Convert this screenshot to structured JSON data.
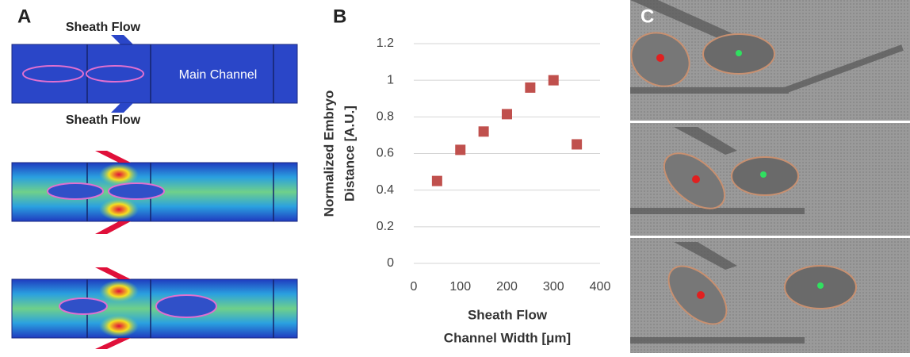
{
  "panel_labels": {
    "a": "A",
    "b": "B",
    "c": "C"
  },
  "panel_a": {
    "sheath_top": "Sheath Flow",
    "sheath_bottom": "Sheath Flow",
    "main_channel": "Main Channel"
  },
  "chart_data": {
    "type": "scatter",
    "ylabel": [
      "Normalized Embryo",
      "Distance [A.U.]"
    ],
    "xlabel": [
      "Sheath Flow",
      "Channel Width [μm]"
    ],
    "x": [
      50,
      100,
      150,
      200,
      250,
      300,
      350
    ],
    "values": [
      0.45,
      0.62,
      0.72,
      0.815,
      0.96,
      1.0,
      0.65
    ],
    "color": "#c0504d",
    "xlim": [
      0,
      400
    ],
    "xticks": [
      0,
      100,
      200,
      300,
      400
    ],
    "ylim": [
      0,
      1.2
    ],
    "yticks": [
      0,
      0.2,
      0.4,
      0.6,
      0.8,
      1,
      1.2
    ],
    "grid": true
  }
}
